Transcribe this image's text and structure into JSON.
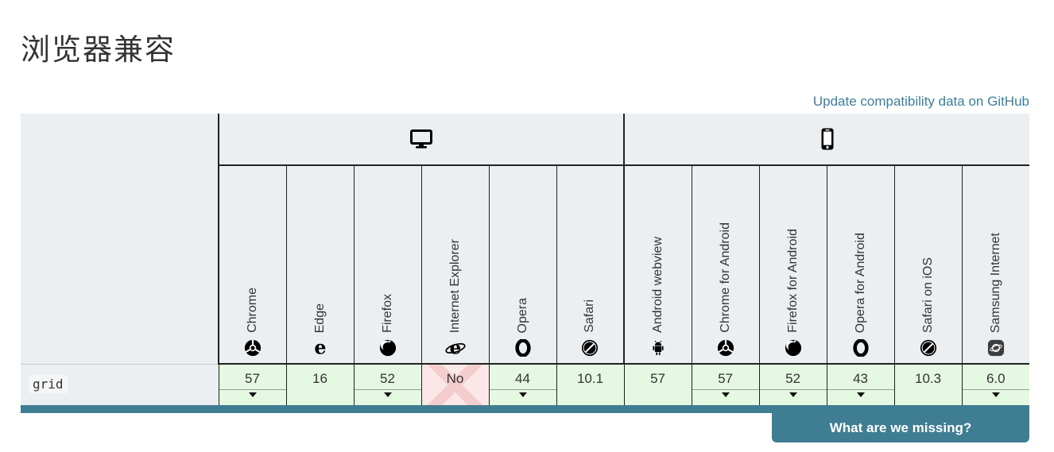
{
  "header": {
    "title": "浏览器兼容",
    "update_link_label": "Update compatibility data on GitHub"
  },
  "table": {
    "platforms": {
      "desktop": {
        "icon": "desktop-icon"
      },
      "mobile": {
        "icon": "mobile-icon"
      }
    },
    "feature": {
      "name": "grid"
    },
    "browsers": {
      "desktop": [
        {
          "name": "Chrome",
          "icon": "chrome-icon",
          "support": "57",
          "status": "yes",
          "history": true
        },
        {
          "name": "Edge",
          "icon": "edge-icon",
          "support": "16",
          "status": "yes",
          "history": false
        },
        {
          "name": "Firefox",
          "icon": "firefox-icon",
          "support": "52",
          "status": "yes",
          "history": true
        },
        {
          "name": "Internet Explorer",
          "icon": "ie-icon",
          "support": "No",
          "status": "no",
          "history": false
        },
        {
          "name": "Opera",
          "icon": "opera-icon",
          "support": "44",
          "status": "yes",
          "history": true
        },
        {
          "name": "Safari",
          "icon": "safari-icon",
          "support": "10.1",
          "status": "yes",
          "history": false
        }
      ],
      "mobile": [
        {
          "name": "Android webview",
          "icon": "android-icon",
          "support": "57",
          "status": "yes",
          "history": false
        },
        {
          "name": "Chrome for Android",
          "icon": "chrome-icon",
          "support": "57",
          "status": "yes",
          "history": true
        },
        {
          "name": "Firefox for Android",
          "icon": "firefox-icon",
          "support": "52",
          "status": "yes",
          "history": true
        },
        {
          "name": "Opera for Android",
          "icon": "opera-icon",
          "support": "43",
          "status": "yes",
          "history": true
        },
        {
          "name": "Safari on iOS",
          "icon": "safari-icon",
          "support": "10.3",
          "status": "yes",
          "history": false
        },
        {
          "name": "Samsung Internet",
          "icon": "samsung-icon",
          "support": "6.0",
          "status": "yes",
          "history": true
        }
      ]
    }
  },
  "survey": {
    "button_label": "What are we missing?"
  },
  "colors": {
    "accent": "#3d7e9a",
    "survey": "#3f7d93",
    "header_bg": "#eceff1",
    "yes_bg": "#e5f8e2",
    "no_bg": "#fbe7e7",
    "no_x": "#f3cdcd",
    "border_dark": "#212121"
  }
}
